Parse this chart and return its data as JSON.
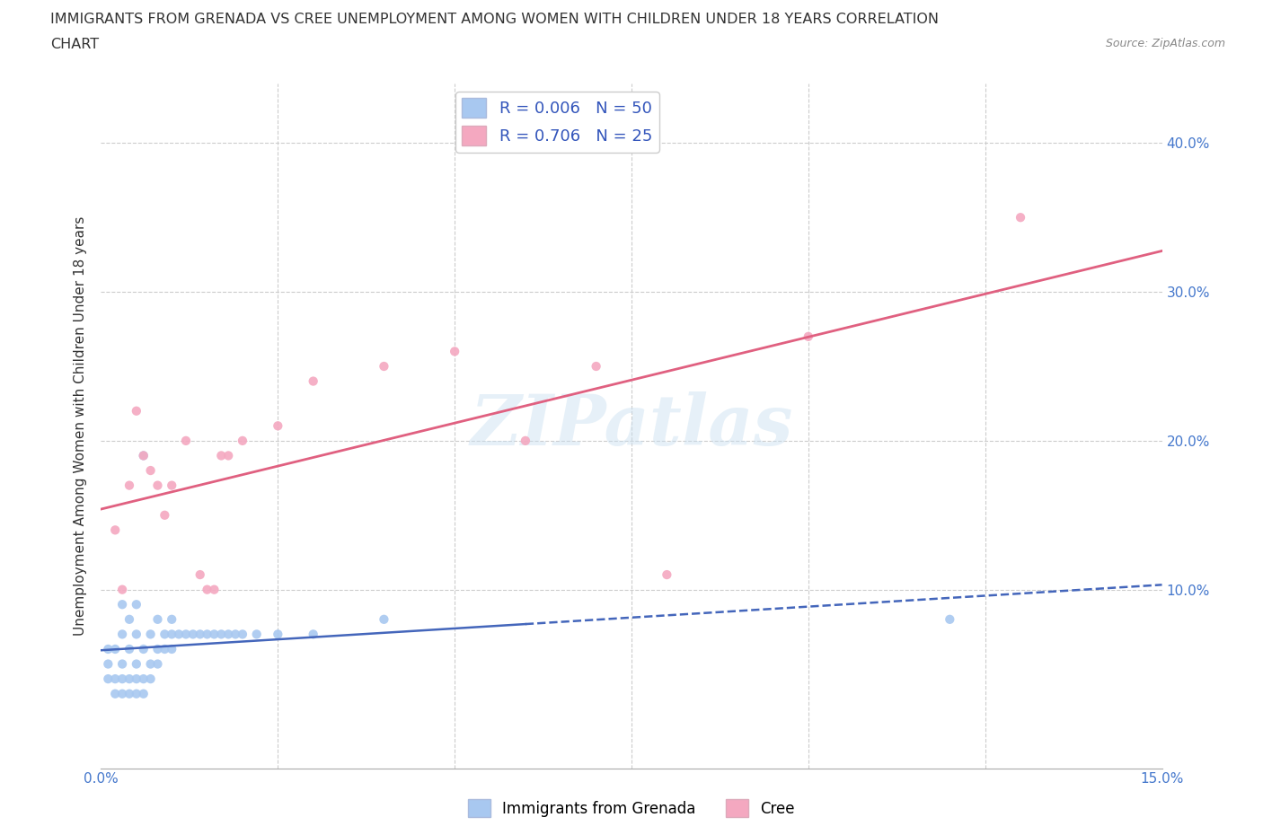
{
  "title_line1": "IMMIGRANTS FROM GRENADA VS CREE UNEMPLOYMENT AMONG WOMEN WITH CHILDREN UNDER 18 YEARS CORRELATION",
  "title_line2": "CHART",
  "source_text": "Source: ZipAtlas.com",
  "ylabel": "Unemployment Among Women with Children Under 18 years",
  "xlim": [
    0.0,
    0.15
  ],
  "ylim": [
    -0.02,
    0.44
  ],
  "watermark_text": "ZIPatlas",
  "grenada_color": "#a8c8f0",
  "cree_color": "#f4a8c0",
  "grenada_line_color": "#4466bb",
  "cree_line_color": "#e06080",
  "background_color": "#ffffff",
  "grid_color": "#cccccc",
  "grenada_R": 0.006,
  "grenada_N": 50,
  "cree_R": 0.706,
  "cree_N": 25,
  "legend_color": "#3355bb",
  "grenada_x": [
    0.001,
    0.001,
    0.001,
    0.002,
    0.002,
    0.002,
    0.003,
    0.003,
    0.003,
    0.003,
    0.003,
    0.004,
    0.004,
    0.004,
    0.004,
    0.005,
    0.005,
    0.005,
    0.005,
    0.005,
    0.006,
    0.006,
    0.006,
    0.006,
    0.007,
    0.007,
    0.007,
    0.008,
    0.008,
    0.008,
    0.009,
    0.009,
    0.01,
    0.01,
    0.01,
    0.011,
    0.012,
    0.013,
    0.014,
    0.015,
    0.016,
    0.017,
    0.018,
    0.019,
    0.02,
    0.022,
    0.025,
    0.03,
    0.04,
    0.12
  ],
  "grenada_y": [
    0.04,
    0.05,
    0.06,
    0.03,
    0.04,
    0.06,
    0.03,
    0.04,
    0.05,
    0.07,
    0.09,
    0.03,
    0.04,
    0.06,
    0.08,
    0.03,
    0.04,
    0.05,
    0.07,
    0.09,
    0.03,
    0.04,
    0.06,
    0.19,
    0.04,
    0.05,
    0.07,
    0.05,
    0.06,
    0.08,
    0.06,
    0.07,
    0.06,
    0.07,
    0.08,
    0.07,
    0.07,
    0.07,
    0.07,
    0.07,
    0.07,
    0.07,
    0.07,
    0.07,
    0.07,
    0.07,
    0.07,
    0.07,
    0.08,
    0.08
  ],
  "cree_x": [
    0.002,
    0.003,
    0.004,
    0.005,
    0.006,
    0.007,
    0.008,
    0.009,
    0.01,
    0.012,
    0.014,
    0.015,
    0.016,
    0.017,
    0.018,
    0.02,
    0.025,
    0.03,
    0.04,
    0.05,
    0.06,
    0.07,
    0.08,
    0.1,
    0.13
  ],
  "cree_y": [
    0.14,
    0.1,
    0.17,
    0.22,
    0.19,
    0.18,
    0.17,
    0.15,
    0.17,
    0.2,
    0.11,
    0.1,
    0.1,
    0.19,
    0.19,
    0.2,
    0.21,
    0.24,
    0.25,
    0.26,
    0.2,
    0.25,
    0.11,
    0.27,
    0.35
  ]
}
